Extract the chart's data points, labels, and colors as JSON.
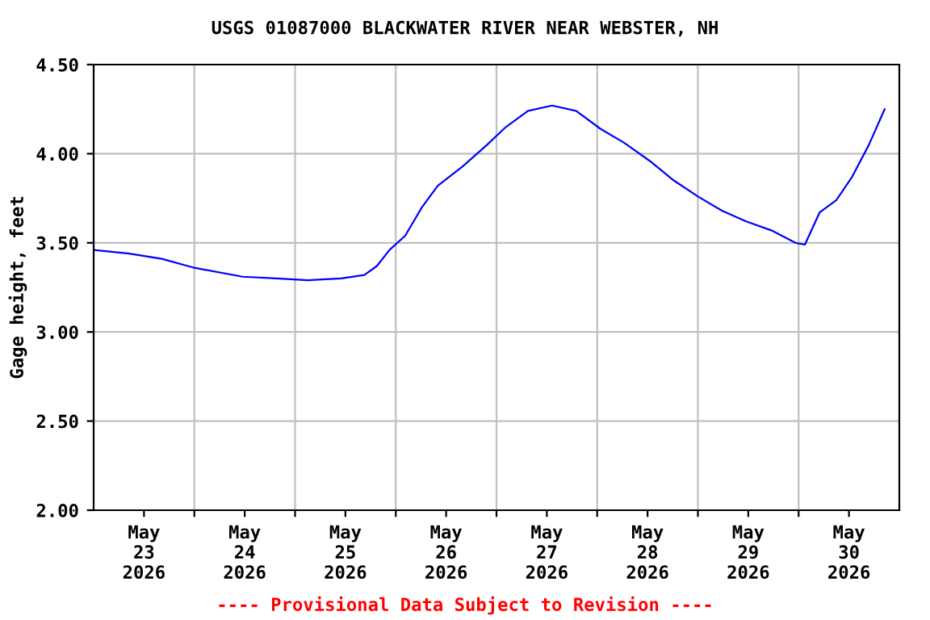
{
  "chart_data": {
    "type": "line",
    "title": "USGS 01087000 BLACKWATER RIVER NEAR WEBSTER, NH",
    "ylabel": "Gage height, feet",
    "annotations": [
      "---- Provisional Data Subject to Revision ----"
    ],
    "x": [
      "2026-05-23T00:00",
      "2026-05-23T08:30",
      "2026-05-23T16:15",
      "2026-05-24T00:00",
      "2026-05-24T11:30",
      "2026-05-24T19:30",
      "2026-05-25T03:00",
      "2026-05-25T11:00",
      "2026-05-25T16:30",
      "2026-05-25T19:30",
      "2026-05-25T22:30",
      "2026-05-26T02:15",
      "2026-05-26T06:15",
      "2026-05-26T10:00",
      "2026-05-26T16:00",
      "2026-05-26T21:45",
      "2026-05-27T02:15",
      "2026-05-27T07:30",
      "2026-05-27T13:15",
      "2026-05-27T19:00",
      "2026-05-28T00:45",
      "2026-05-28T06:30",
      "2026-05-28T12:30",
      "2026-05-28T18:15",
      "2026-05-29T00:00",
      "2026-05-29T05:45",
      "2026-05-29T11:30",
      "2026-05-29T17:30",
      "2026-05-29T23:15",
      "2026-05-30T01:30",
      "2026-05-30T05:00",
      "2026-05-30T09:00",
      "2026-05-30T12:45",
      "2026-05-30T16:45",
      "2026-05-30T20:30"
    ],
    "series": [
      {
        "color": "#0000ff",
        "values": [
          3.46,
          3.44,
          3.41,
          3.36,
          3.31,
          3.3,
          3.29,
          3.3,
          3.32,
          3.37,
          3.46,
          3.54,
          3.7,
          3.82,
          3.93,
          4.05,
          4.15,
          4.24,
          4.27,
          4.24,
          4.14,
          4.06,
          3.96,
          3.85,
          3.76,
          3.68,
          3.62,
          3.57,
          3.5,
          3.49,
          3.67,
          3.74,
          3.87,
          4.05,
          4.25
        ]
      }
    ],
    "xlim": [
      "2026-05-23T00:00",
      "2026-05-31T00:00"
    ],
    "xticks": [
      {
        "value": "2026-05-23T12:00",
        "label": "May\n23\n2026"
      },
      {
        "value": "2026-05-24T00:00",
        "label": null
      },
      {
        "value": "2026-05-24T12:00",
        "label": "May\n24\n2026"
      },
      {
        "value": "2026-05-25T00:00",
        "label": null
      },
      {
        "value": "2026-05-25T12:00",
        "label": "May\n25\n2026"
      },
      {
        "value": "2026-05-26T00:00",
        "label": null
      },
      {
        "value": "2026-05-26T12:00",
        "label": "May\n26\n2026"
      },
      {
        "value": "2026-05-27T00:00",
        "label": null
      },
      {
        "value": "2026-05-27T12:00",
        "label": "May\n27\n2026"
      },
      {
        "value": "2026-05-28T00:00",
        "label": null
      },
      {
        "value": "2026-05-28T12:00",
        "label": "May\n28\n2026"
      },
      {
        "value": "2026-05-29T00:00",
        "label": null
      },
      {
        "value": "2026-05-29T12:00",
        "label": "May\n29\n2026"
      },
      {
        "value": "2026-05-30T00:00",
        "label": null
      },
      {
        "value": "2026-05-30T12:00",
        "label": "May\n30\n2026"
      }
    ],
    "ylim": [
      2.0,
      4.5
    ],
    "yticks": [
      {
        "value": 2.0,
        "label": "2.00"
      },
      {
        "value": 2.5,
        "label": "2.50"
      },
      {
        "value": 3.0,
        "label": "3.00"
      },
      {
        "value": 3.5,
        "label": "3.50"
      },
      {
        "value": 4.0,
        "label": "4.00"
      },
      {
        "value": 4.5,
        "label": "4.50"
      }
    ],
    "grid": true
  }
}
